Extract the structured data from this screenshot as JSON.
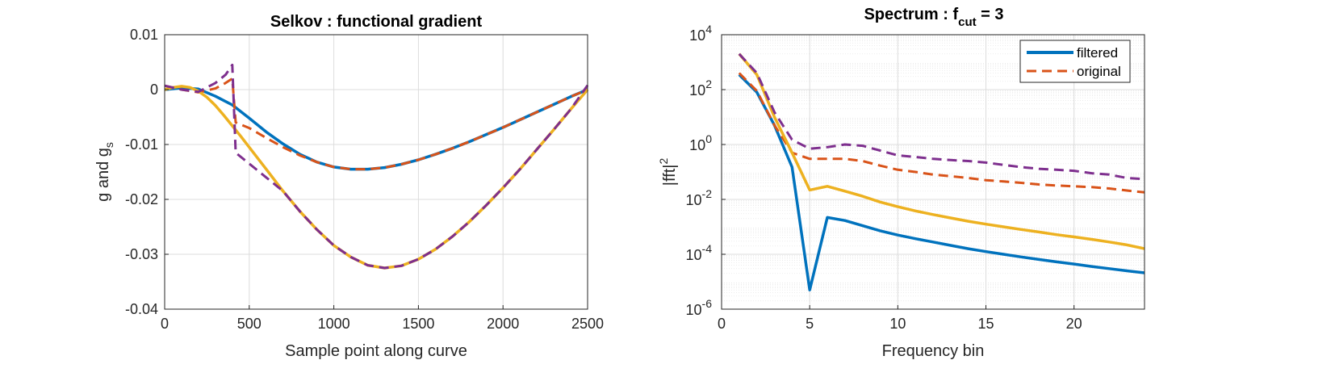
{
  "colors": {
    "blue": "#0072BD",
    "orange": "#D95319",
    "yellow": "#EDB120",
    "purple": "#7E2F8E",
    "grid": "#DCDCDC",
    "axis": "#262626"
  },
  "chart_data": [
    {
      "type": "line",
      "title": "Selkov : functional gradient",
      "xlabel": "Sample point along curve",
      "ylabel_main": "g and g",
      "ylabel_sub": "s",
      "xlim": [
        0,
        2500
      ],
      "ylim": [
        -0.04,
        0.01
      ],
      "xticks": [
        0,
        500,
        1000,
        1500,
        2000,
        2500
      ],
      "xtick_labels": [
        "0",
        "500",
        "1000",
        "1500",
        "2000",
        "2500"
      ],
      "yticks": [
        0.01,
        0,
        -0.01,
        -0.02,
        -0.03,
        -0.04
      ],
      "ytick_labels": [
        "0.01",
        "0",
        "-0.01",
        "-0.02",
        "-0.03",
        "-0.04"
      ],
      "grid": true,
      "series": [
        {
          "color": "blue",
          "style": "solid",
          "x": [
            0,
            100,
            200,
            300,
            400,
            500,
            600,
            700,
            800,
            900,
            1000,
            1100,
            1200,
            1300,
            1400,
            1500,
            1600,
            1700,
            1800,
            1900,
            2000,
            2100,
            2200,
            2300,
            2400,
            2500
          ],
          "y": [
            0,
            0.0003,
            0.0001,
            -0.0012,
            -0.0028,
            -0.0052,
            -0.0077,
            -0.0099,
            -0.0118,
            -0.0132,
            -0.0141,
            -0.0145,
            -0.0145,
            -0.0142,
            -0.0136,
            -0.0128,
            -0.0118,
            -0.0107,
            -0.0095,
            -0.0082,
            -0.0069,
            -0.0055,
            -0.0041,
            -0.0027,
            -0.0013,
            0
          ]
        },
        {
          "color": "orange",
          "style": "dashed",
          "x": [
            0,
            100,
            200,
            300,
            360,
            400,
            420,
            500,
            600,
            700,
            800,
            900,
            1000,
            1100,
            1200,
            1300,
            1400,
            1500,
            1600,
            1700,
            1800,
            1900,
            2000,
            2100,
            2200,
            2300,
            2400,
            2500
          ],
          "y": [
            0.0007,
            0,
            -0.0005,
            0.0002,
            0.0012,
            0.002,
            -0.006,
            -0.007,
            -0.0088,
            -0.0105,
            -0.012,
            -0.0132,
            -0.0141,
            -0.0145,
            -0.0145,
            -0.0142,
            -0.0136,
            -0.0128,
            -0.0118,
            -0.0107,
            -0.0095,
            -0.0082,
            -0.0069,
            -0.0055,
            -0.0041,
            -0.0027,
            -0.0013,
            0
          ]
        },
        {
          "color": "yellow",
          "style": "solid",
          "x": [
            0,
            50,
            100,
            150,
            200,
            250,
            300,
            350,
            400,
            450,
            500,
            600,
            700,
            800,
            900,
            1000,
            1100,
            1200,
            1300,
            1400,
            1500,
            1600,
            1700,
            1800,
            1900,
            2000,
            2100,
            2200,
            2300,
            2400,
            2500
          ],
          "y": [
            0,
            0.0004,
            0.0006,
            0.0004,
            -0.0003,
            -0.0014,
            -0.0029,
            -0.0047,
            -0.0066,
            -0.0085,
            -0.0105,
            -0.0145,
            -0.0185,
            -0.0222,
            -0.0255,
            -0.0284,
            -0.0305,
            -0.032,
            -0.0325,
            -0.0321,
            -0.0309,
            -0.0291,
            -0.0268,
            -0.0241,
            -0.0211,
            -0.0179,
            -0.0145,
            -0.0109,
            -0.0073,
            -0.0036,
            0
          ]
        },
        {
          "color": "purple",
          "style": "dashed",
          "x": [
            0,
            100,
            200,
            300,
            360,
            400,
            420,
            500,
            600,
            700,
            800,
            900,
            1000,
            1100,
            1200,
            1300,
            1400,
            1500,
            1600,
            1700,
            1800,
            1900,
            2000,
            2100,
            2200,
            2300,
            2400,
            2500
          ],
          "y": [
            0.0007,
            0,
            -0.0004,
            0.0012,
            0.0027,
            0.0045,
            -0.0115,
            -0.0135,
            -0.016,
            -0.0185,
            -0.0222,
            -0.0255,
            -0.0284,
            -0.0305,
            -0.032,
            -0.0325,
            -0.0321,
            -0.0309,
            -0.0291,
            -0.0268,
            -0.0241,
            -0.0211,
            -0.0179,
            -0.0145,
            -0.0109,
            -0.0073,
            -0.0036,
            0.0008
          ]
        }
      ]
    },
    {
      "type": "line",
      "title_main": "Spectrum : f",
      "title_sub": "cut",
      "title_tail": " = 3",
      "xlabel": "Frequency bin",
      "ylabel_main": "|fft|",
      "ylabel_sup": "2",
      "yscale": "log",
      "xlim": [
        0,
        24
      ],
      "ylim": [
        1e-06,
        10000.0
      ],
      "xticks": [
        0,
        5,
        10,
        15,
        20
      ],
      "xtick_labels": [
        "0",
        "5",
        "10",
        "15",
        "20"
      ],
      "yticks": [
        1e-06,
        0.0001,
        0.01,
        1,
        100.0,
        10000.0
      ],
      "ytick_base": "10",
      "ytick_exponents": [
        "-6",
        "-4",
        "-2",
        "0",
        "2",
        "4"
      ],
      "grid": true,
      "minor_grid": true,
      "legend": {
        "placement": "top-right",
        "entries": [
          {
            "label": "filtered",
            "color": "blue",
            "style": "solid"
          },
          {
            "label": "original",
            "color": "orange",
            "style": "dashed"
          }
        ]
      },
      "series": [
        {
          "name": "filtered",
          "color": "blue",
          "style": "solid",
          "x": [
            1,
            2,
            3,
            4,
            5,
            6,
            7,
            8,
            9,
            10,
            11,
            12,
            13,
            14,
            15,
            16,
            17,
            18,
            19,
            20,
            21,
            22,
            23,
            24
          ],
          "y": [
            350,
            80,
            5,
            0.15,
            5e-06,
            0.0022,
            0.0017,
            0.0011,
            0.00072,
            0.0005,
            0.00037,
            0.00028,
            0.00021,
            0.00016,
            0.000125,
            0.0001,
            8e-05,
            6.5e-05,
            5.3e-05,
            4.4e-05,
            3.6e-05,
            3e-05,
            2.5e-05,
            2.1e-05
          ]
        },
        {
          "name": "original",
          "color": "orange",
          "style": "dashed",
          "x": [
            1,
            2,
            3,
            4,
            5,
            6,
            7,
            8,
            9,
            10,
            11,
            12,
            13,
            14,
            15,
            16,
            17,
            18,
            19,
            20,
            21,
            22,
            23,
            24
          ],
          "y": [
            400,
            90,
            5,
            0.5,
            0.3,
            0.3,
            0.3,
            0.25,
            0.17,
            0.12,
            0.1,
            0.08,
            0.07,
            0.06,
            0.05,
            0.045,
            0.04,
            0.035,
            0.032,
            0.03,
            0.028,
            0.025,
            0.021,
            0.018
          ]
        },
        {
          "color": "yellow",
          "style": "solid",
          "x": [
            1,
            2,
            3,
            4,
            5,
            6,
            7,
            8,
            9,
            10,
            11,
            12,
            13,
            14,
            15,
            16,
            17,
            18,
            19,
            20,
            21,
            22,
            23,
            24
          ],
          "y": [
            2000,
            350,
            10,
            0.5,
            0.022,
            0.03,
            0.02,
            0.013,
            0.008,
            0.0054,
            0.0038,
            0.0028,
            0.0021,
            0.0016,
            0.00125,
            0.001,
            0.0008,
            0.00065,
            0.00052,
            0.00043,
            0.00035,
            0.00028,
            0.00022,
            0.00016
          ]
        },
        {
          "color": "purple",
          "style": "dashed",
          "x": [
            1,
            2,
            3,
            4,
            5,
            6,
            7,
            8,
            9,
            10,
            11,
            12,
            13,
            14,
            15,
            16,
            17,
            18,
            19,
            20,
            21,
            22,
            23,
            24
          ],
          "y": [
            2000,
            400,
            15,
            1.5,
            0.7,
            0.8,
            1,
            0.9,
            0.6,
            0.4,
            0.35,
            0.3,
            0.27,
            0.25,
            0.22,
            0.18,
            0.15,
            0.13,
            0.12,
            0.11,
            0.09,
            0.08,
            0.06,
            0.055
          ]
        }
      ]
    }
  ]
}
